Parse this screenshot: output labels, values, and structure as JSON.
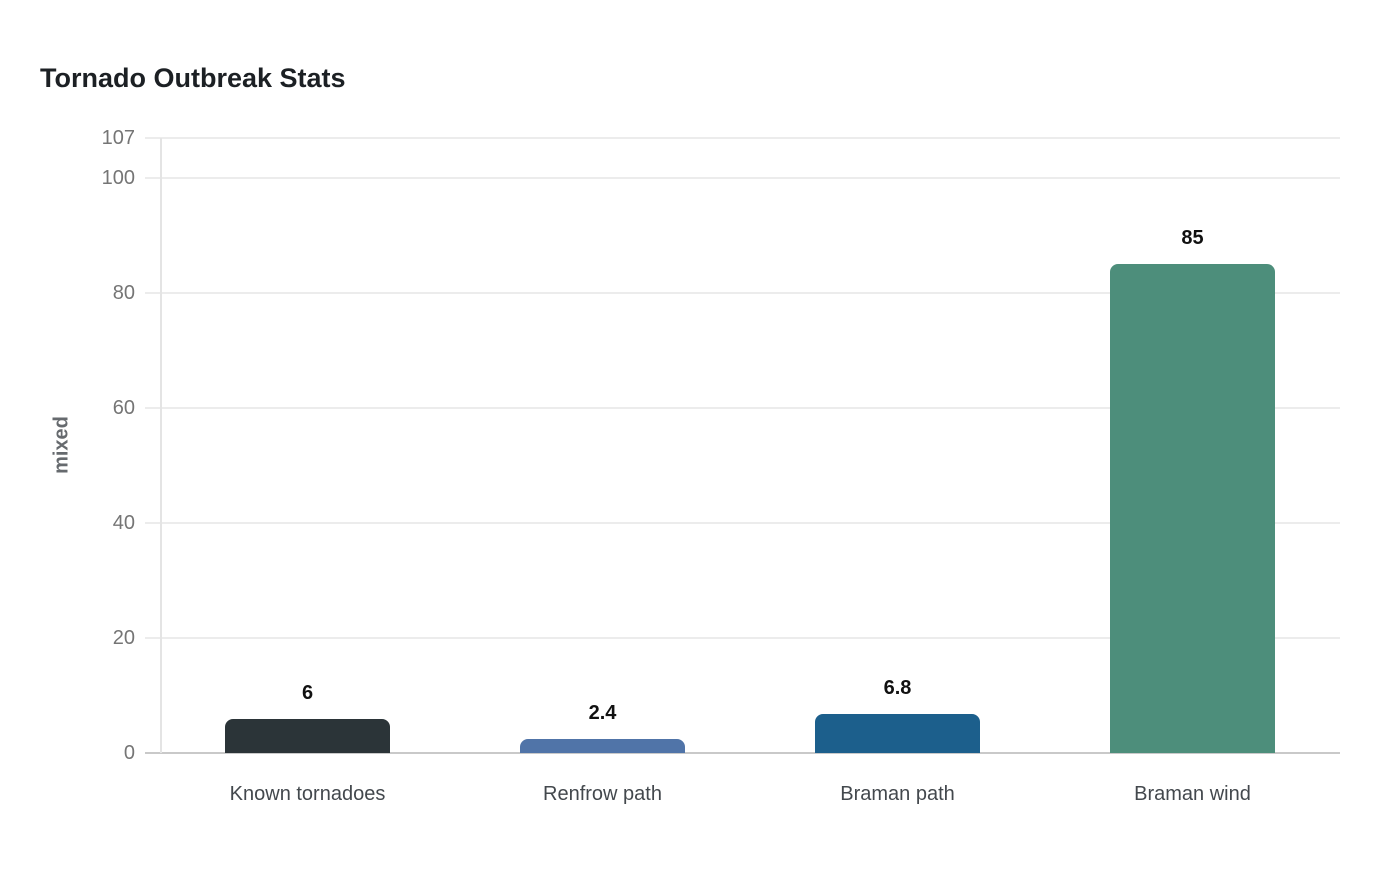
{
  "title": "Tornado Outbreak Stats",
  "chart_data": {
    "type": "bar",
    "title": "Tornado Outbreak Stats",
    "categories": [
      "Known tornadoes",
      "Renfrow path",
      "Braman path",
      "Braman wind"
    ],
    "values": [
      6,
      2.4,
      6.8,
      85
    ],
    "value_labels": [
      "6",
      "2.4",
      "6.8",
      "85"
    ],
    "bar_colors": [
      "#2b3438",
      "#5074a8",
      "#1c5f8c",
      "#4d8e7b"
    ],
    "xlabel": "",
    "ylabel": "mixed",
    "ylim": [
      0,
      107
    ],
    "yticks": [
      0,
      20,
      40,
      60,
      80,
      100,
      107
    ],
    "grid": true,
    "legend_position": "none",
    "background_color": "#ffffff",
    "gridline_color": "#ececec",
    "axis_line_color": "#c9c9c9",
    "tick_label_color": "#757575",
    "category_label_color": "#43484d",
    "value_label_color": "#111111",
    "title_color": "#1c2024"
  }
}
